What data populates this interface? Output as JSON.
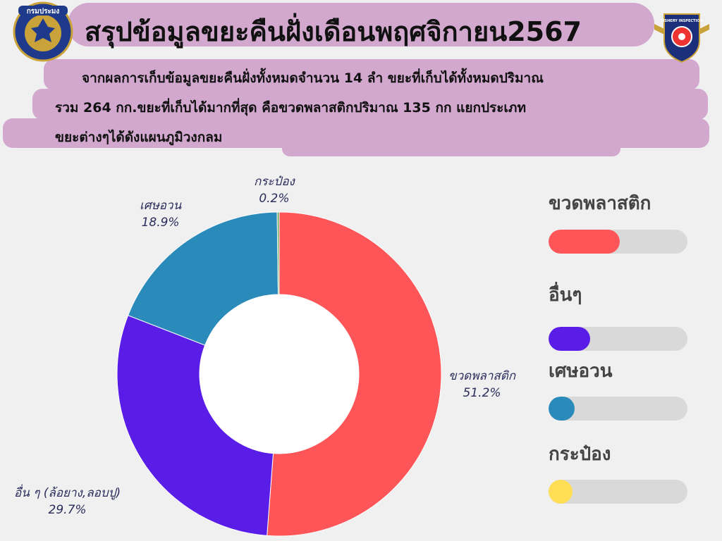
{
  "title": "สรุปข้อมูลขยะคืนฝั่งเดือนพฤศจิกายน2567",
  "summary": {
    "line1": "จากผลการเก็บข้อมูลขยะคืนฝั่งทั้งหมดจำนวน 14 ลำ ขยะที่เก็บได้ทั้งหมดปริมาณ",
    "line2": "รวม 264 กก.ขยะที่เก็บได้มากที่สุด คือขวดพลาสติกปริมาณ 135 กก แยกประเภท",
    "line3": "ขยะต่างๆได้ดังแผนภูมิวงกลม"
  },
  "logos": {
    "left": {
      "icon": "department-of-fisheries-seal-icon",
      "text": "กรมประมง"
    },
    "right": {
      "icon": "fishery-inspection-badge-icon",
      "text": "FISHERY INSPECTION"
    }
  },
  "chart_data": {
    "type": "pie",
    "donut": true,
    "slices": [
      {
        "label": "ขวดพลาสติก",
        "value": 51.2,
        "value_label": "51.2%",
        "color": "#fe5559"
      },
      {
        "label": "อื่น ๆ (ล้อยาง,ลอบปู)",
        "value": 29.7,
        "value_label": "29.7%",
        "color": "#5a1de8"
      },
      {
        "label": "เศษอวน",
        "value": 18.9,
        "value_label": "18.9%",
        "color": "#2a8bbb"
      },
      {
        "label": "กระป๋อง",
        "value": 0.2,
        "value_label": "0.2%",
        "color": "#6fa95a"
      }
    ],
    "legend": {
      "placement": "right",
      "items": [
        {
          "label": "ขวดพลาสติก",
          "fraction": 0.512,
          "color": "#fe5559"
        },
        {
          "label": "อื่นๆ",
          "fraction": 0.297,
          "color": "#5a1de8"
        },
        {
          "label": "เศษอวน",
          "fraction": 0.189,
          "color": "#2a8bbb"
        },
        {
          "label": "กระป๋อง",
          "fraction": 0.002,
          "color": "#ffdd55"
        }
      ]
    }
  }
}
